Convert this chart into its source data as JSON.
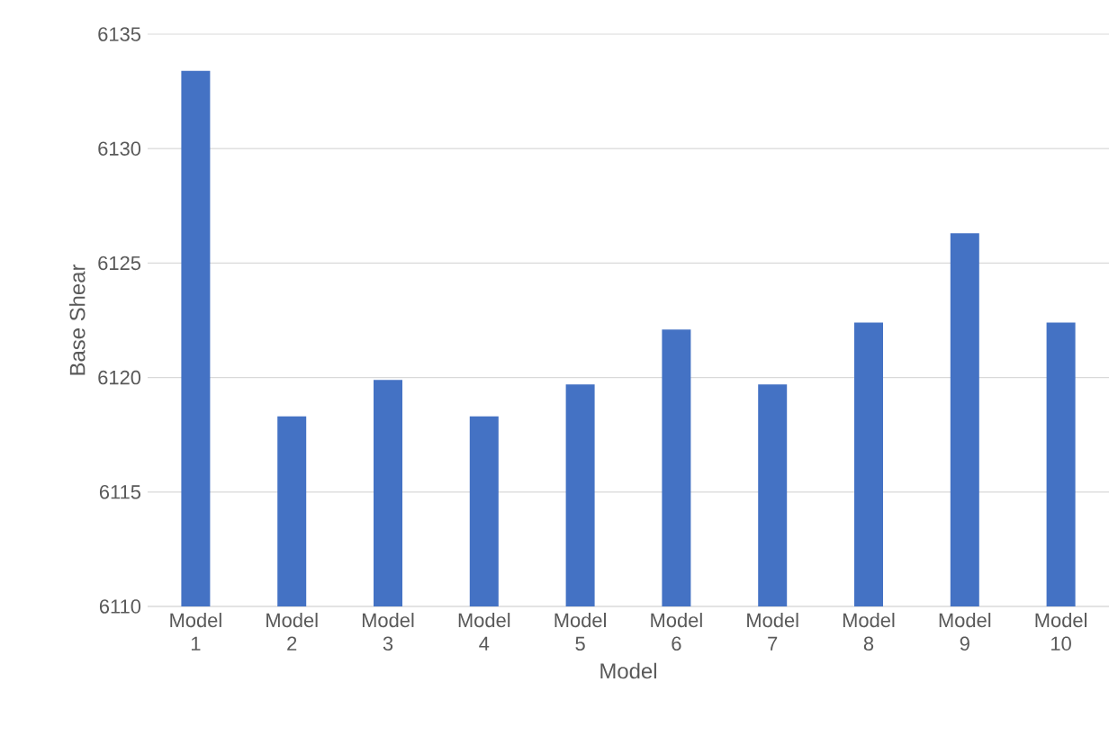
{
  "chart_data": {
    "type": "bar",
    "xlabel": "Model",
    "ylabel": "Base Shear",
    "categories": [
      "Model 1",
      "Model 2",
      "Model 3",
      "Model 4",
      "Model 5",
      "Model 6",
      "Model 7",
      "Model 8",
      "Model 9",
      "Model 10"
    ],
    "values": [
      6133.4,
      6118.3,
      6119.9,
      6118.3,
      6119.7,
      6122.1,
      6119.7,
      6122.4,
      6126.3,
      6122.4
    ],
    "color": "#4472c4",
    "ylim": [
      6110,
      6135
    ],
    "yticks": [
      6110,
      6115,
      6120,
      6125,
      6130,
      6135
    ],
    "grid": "y"
  }
}
